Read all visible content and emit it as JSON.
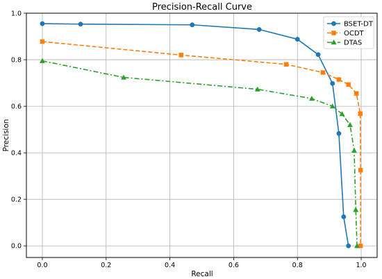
{
  "chart_data": {
    "type": "line",
    "title": "Precision-Recall Curve",
    "xlabel": "Recall",
    "ylabel": "Precision",
    "xlim": [
      -0.05,
      1.05
    ],
    "ylim": [
      -0.05,
      1.0
    ],
    "xticks": [
      "0.0",
      "0.2",
      "0.4",
      "0.6",
      "0.8",
      "1.0"
    ],
    "yticks": [
      "0.0",
      "0.2",
      "0.4",
      "0.6",
      "0.8",
      "1.0"
    ],
    "grid": true,
    "legend_position": "top-right",
    "series": [
      {
        "name": "BSET-DT",
        "color": "#1f77b4",
        "line_style": "solid",
        "marker": "circle",
        "x": [
          0.0,
          0.12,
          0.47,
          0.68,
          0.8,
          0.865,
          0.91,
          0.93,
          0.945,
          0.96
        ],
        "y": [
          0.955,
          0.953,
          0.95,
          0.93,
          0.888,
          0.822,
          0.698,
          0.483,
          0.125,
          0.0
        ]
      },
      {
        "name": "OCDT",
        "color": "#ff7f0e",
        "line_style": "dashed",
        "marker": "square",
        "x": [
          0.0,
          0.435,
          0.765,
          0.88,
          0.93,
          0.96,
          0.985,
          0.997,
          0.998,
          0.998
        ],
        "y": [
          0.878,
          0.82,
          0.78,
          0.745,
          0.715,
          0.693,
          0.655,
          0.568,
          0.325,
          0.0
        ]
      },
      {
        "name": "DTAS",
        "color": "#2ca02c",
        "line_style": "dashdot",
        "marker": "triangle",
        "x": [
          0.0,
          0.255,
          0.675,
          0.845,
          0.91,
          0.94,
          0.965,
          0.978,
          0.983,
          0.987
        ],
        "y": [
          0.795,
          0.724,
          0.673,
          0.633,
          0.6,
          0.567,
          0.52,
          0.41,
          0.155,
          0.0
        ]
      }
    ]
  }
}
